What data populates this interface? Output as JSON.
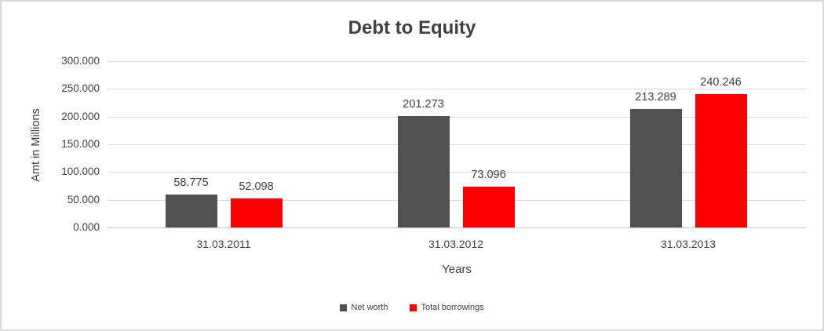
{
  "chart_data": {
    "type": "bar",
    "title": "Debt to Equity",
    "xlabel": "Years",
    "ylabel": "Amt in Millions",
    "categories": [
      "31.03.2011",
      "31.03.2012",
      "31.03.2013"
    ],
    "series": [
      {
        "name": "Net worth",
        "color": "#515151",
        "values": [
          58.775,
          201.273,
          213.289
        ],
        "data_labels": [
          "58.775",
          "201.273",
          "213.289"
        ]
      },
      {
        "name": "Total borrowings",
        "color": "#ff0000",
        "values": [
          52.098,
          73.096,
          240.246
        ],
        "data_labels": [
          "52.098",
          "73.096",
          "240.246"
        ]
      }
    ],
    "ylim": [
      0,
      300
    ],
    "ytick_step": 50,
    "ytick_labels": [
      "0.000",
      "50.000",
      "100.000",
      "150.000",
      "200.000",
      "250.000",
      "300.000"
    ],
    "grid": true,
    "legend_position": "bottom"
  },
  "colors": {
    "gridline": "#d9d9d9",
    "axis_line": "#c6c6c6",
    "text": "#404040",
    "background": "#ffffff",
    "border": "#d9d9d9"
  }
}
